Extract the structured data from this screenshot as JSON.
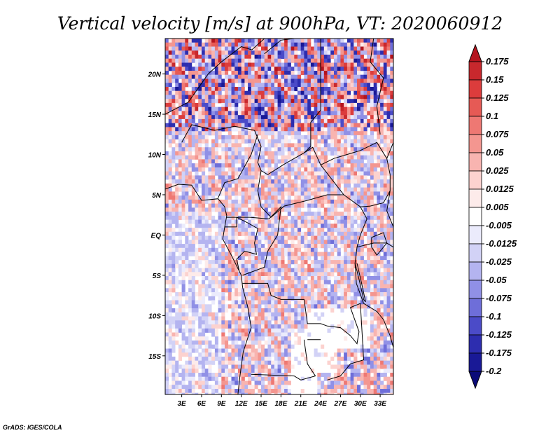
{
  "chart_data": {
    "type": "heatmap",
    "title": "Vertical velocity [m/s] at 900hPa, VT: 2020060912",
    "variable": "Vertical velocity",
    "units": "m/s",
    "level": "900hPa",
    "valid_time": "2020060912",
    "x_ticks": [
      {
        "lon": 3,
        "label": "3E"
      },
      {
        "lon": 6,
        "label": "6E"
      },
      {
        "lon": 9,
        "label": "9E"
      },
      {
        "lon": 12,
        "label": "12E"
      },
      {
        "lon": 15,
        "label": "15E"
      },
      {
        "lon": 18,
        "label": "18E"
      },
      {
        "lon": 21,
        "label": "21E"
      },
      {
        "lon": 24,
        "label": "24E"
      },
      {
        "lon": 27,
        "label": "27E"
      },
      {
        "lon": 30,
        "label": "30E"
      },
      {
        "lon": 33,
        "label": "33E"
      }
    ],
    "y_ticks": [
      {
        "lat": 20,
        "label": "20N"
      },
      {
        "lat": 15,
        "label": "15N"
      },
      {
        "lat": 10,
        "label": "10N"
      },
      {
        "lat": 5,
        "label": "5N"
      },
      {
        "lat": 0,
        "label": "EQ"
      },
      {
        "lat": -5,
        "label": "5S"
      },
      {
        "lat": -10,
        "label": "10S"
      },
      {
        "lat": -15,
        "label": "15S"
      }
    ],
    "lon_range": [
      0.5,
      35
    ],
    "lat_range": [
      -19.8,
      24.4
    ],
    "colorbar": {
      "labels": [
        "0.175",
        "0.15",
        "0.125",
        "0.1",
        "0.075",
        "0.05",
        "0.025",
        "0.0125",
        "0.005",
        "-0.005",
        "-0.0125",
        "-0.025",
        "-0.05",
        "-0.075",
        "-0.1",
        "-0.125",
        "-0.175",
        "-0.2"
      ],
      "colors": [
        "#b4141e",
        "#c8282d",
        "#dc3c3c",
        "#e65a55",
        "#ee7873",
        "#f49690",
        "#f8b4b0",
        "#fcd2cf",
        "#fdebea",
        "#ffffff",
        "#ebebfc",
        "#d2d2f6",
        "#b4b4f0",
        "#9090e6",
        "#6e6ed9",
        "#4b4bc8",
        "#2d2daf",
        "#191996",
        "#0a0a78"
      ]
    },
    "credit": "GrADS: IGES/COLA"
  }
}
